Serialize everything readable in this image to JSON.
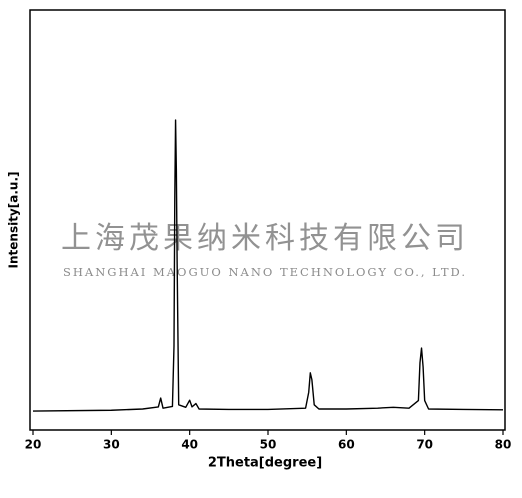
{
  "chart_data": {
    "type": "line",
    "xlabel": "2Theta[degree]",
    "ylabel": "Intensity[a.u.]",
    "annotations": [
      "上海茂果纳米科技有限公司",
      "SHANGHAI MAOGUO NANO TECHNOLOGY CO., LTD."
    ],
    "x": [
      20,
      30,
      34,
      36,
      36.3,
      36.6,
      37.8,
      38.0,
      38.1,
      38.2,
      38.3,
      38.4,
      38.6,
      39.5,
      40.0,
      40.3,
      40.8,
      41.2,
      45,
      50,
      54.8,
      55.2,
      55.4,
      55.6,
      55.9,
      56.5,
      60,
      64,
      66,
      68,
      69.2,
      69.4,
      69.6,
      69.8,
      70.0,
      70.5,
      75,
      80
    ],
    "values": [
      4.5,
      4.7,
      5,
      5.5,
      7.6,
      5.2,
      5.6,
      20,
      55,
      73.8,
      62,
      40,
      6,
      5.4,
      7.1,
      5.5,
      6.3,
      5,
      4.9,
      4.9,
      5.2,
      9,
      13.6,
      12,
      6,
      5,
      5,
      5.2,
      5.4,
      5.2,
      7,
      16,
      19.5,
      15,
      7,
      5,
      4.9,
      4.8
    ],
    "color": "#000000",
    "xlim": [
      20,
      80
    ],
    "xticks": [
      20,
      30,
      40,
      50,
      60,
      70,
      80
    ],
    "ylim": [
      0,
      100
    ]
  }
}
